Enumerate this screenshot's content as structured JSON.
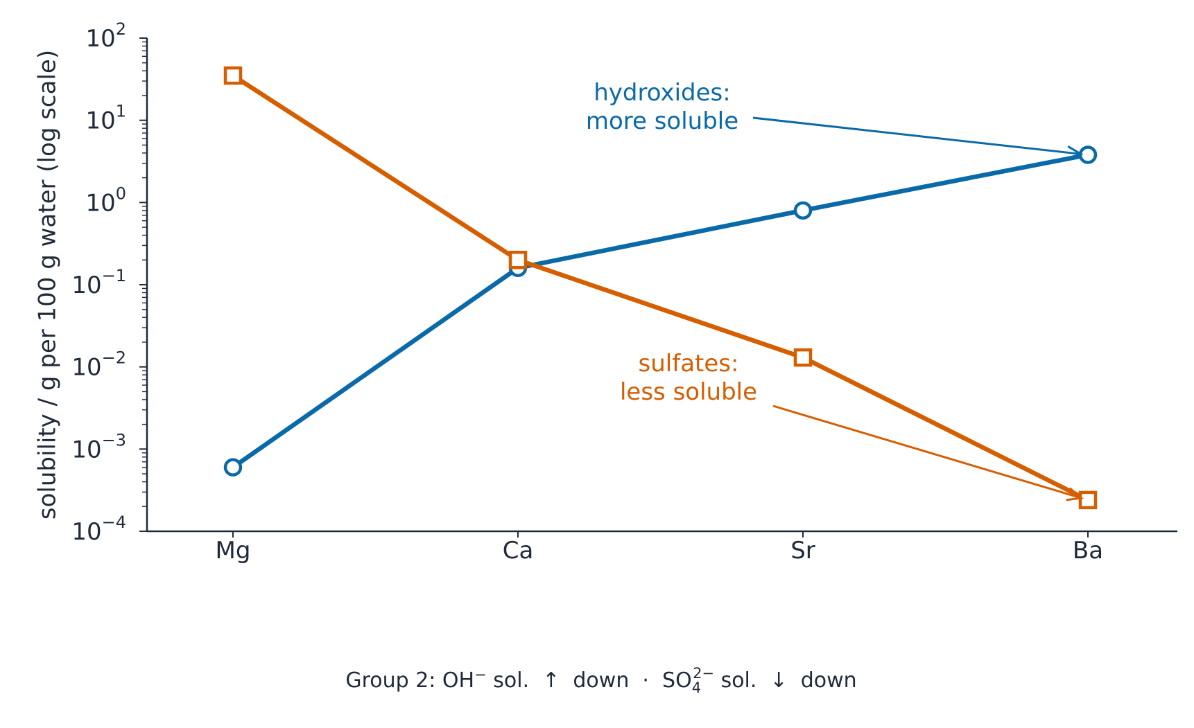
{
  "chart_data": {
    "type": "line",
    "categories": [
      "Mg",
      "Ca",
      "Sr",
      "Ba"
    ],
    "ylabel": "solubility / g per 100 g water  (log scale)",
    "yscale": "log",
    "ylim": [
      0.0001,
      100
    ],
    "y_ticks": [
      {
        "base": "10",
        "exp": "−4"
      },
      {
        "base": "10",
        "exp": "−3"
      },
      {
        "base": "10",
        "exp": "−2"
      },
      {
        "base": "10",
        "exp": "−1"
      },
      {
        "base": "10",
        "exp": "0"
      },
      {
        "base": "10",
        "exp": "1"
      },
      {
        "base": "10",
        "exp": "2"
      }
    ],
    "grid": false,
    "series": [
      {
        "key": "hydroxides",
        "values": [
          0.0006,
          0.16,
          0.8,
          3.8
        ],
        "color": "#0a6aa8",
        "marker": "circle"
      },
      {
        "key": "sulfates",
        "values": [
          35,
          0.2,
          0.013,
          0.00024
        ],
        "color": "#d55e00",
        "marker": "square"
      }
    ],
    "annotations": [
      {
        "series": "hydroxides",
        "lines": [
          "hydroxides:",
          "more soluble"
        ],
        "target": "Ba",
        "color": "#0a6aa8"
      },
      {
        "series": "sulfates",
        "lines": [
          "sulfates:",
          "less soluble"
        ],
        "target": "Ba",
        "color": "#d55e00"
      }
    ],
    "caption": {
      "part1": "Group 2: OH",
      "oh_sup": "−",
      "part2": " sol.  ↑  down  ·  SO",
      "so_sub": "4",
      "so_sup": "2−",
      "part3": " sol.  ↓  down"
    }
  }
}
